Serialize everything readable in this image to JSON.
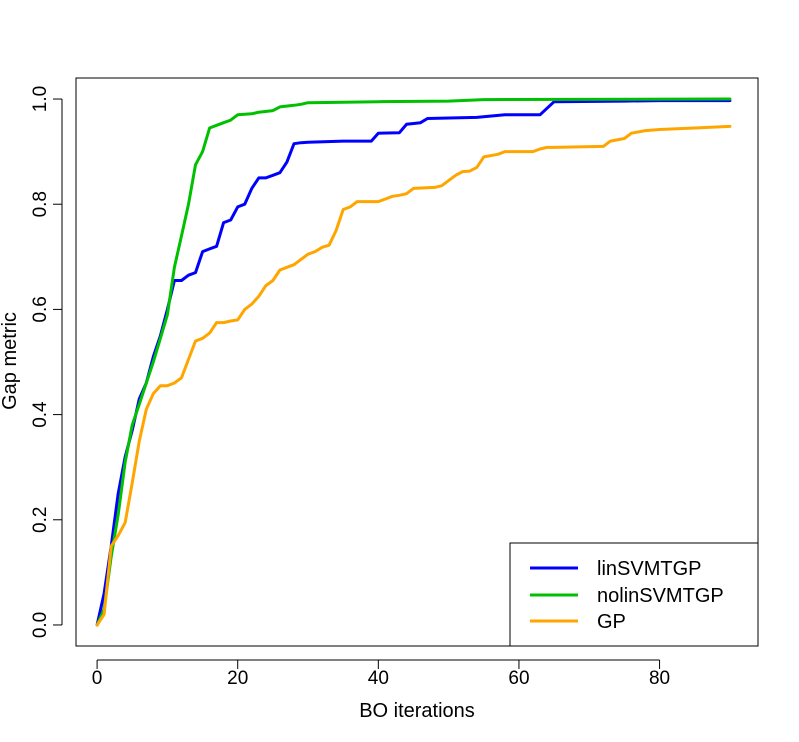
{
  "chart_data": {
    "type": "line",
    "title": "",
    "xlabel": "BO iterations",
    "ylabel": "Gap metric",
    "xlim": [
      -3,
      94
    ],
    "ylim": [
      -0.04,
      1.04
    ],
    "x_ticks": [
      0,
      20,
      40,
      60,
      80
    ],
    "x_tick_labels": [
      "0",
      "20",
      "40",
      "60",
      "80"
    ],
    "y_ticks": [
      0.0,
      0.2,
      0.4,
      0.6,
      0.8,
      1.0
    ],
    "y_tick_labels": [
      "0.0",
      "0.2",
      "0.4",
      "0.6",
      "0.8",
      "1.0"
    ],
    "grid": false,
    "legend_position": "bottom-right",
    "series": [
      {
        "name": "linSVMTGP",
        "color": "#0000ff",
        "points": [
          [
            0,
            0.0
          ],
          [
            1,
            0.06
          ],
          [
            2,
            0.15
          ],
          [
            3,
            0.25
          ],
          [
            4,
            0.32
          ],
          [
            5,
            0.37
          ],
          [
            6,
            0.43
          ],
          [
            7,
            0.46
          ],
          [
            8,
            0.51
          ],
          [
            9,
            0.55
          ],
          [
            10,
            0.6
          ],
          [
            11,
            0.655
          ],
          [
            12,
            0.655
          ],
          [
            13,
            0.665
          ],
          [
            14,
            0.67
          ],
          [
            15,
            0.71
          ],
          [
            16,
            0.715
          ],
          [
            17,
            0.72
          ],
          [
            18,
            0.765
          ],
          [
            19,
            0.77
          ],
          [
            20,
            0.795
          ],
          [
            21,
            0.8
          ],
          [
            22,
            0.83
          ],
          [
            23,
            0.85
          ],
          [
            24,
            0.85
          ],
          [
            25,
            0.855
          ],
          [
            26,
            0.86
          ],
          [
            27,
            0.88
          ],
          [
            28,
            0.915
          ],
          [
            29,
            0.917
          ],
          [
            30,
            0.918
          ],
          [
            35,
            0.92
          ],
          [
            39,
            0.92
          ],
          [
            40,
            0.935
          ],
          [
            43,
            0.936
          ],
          [
            44,
            0.952
          ],
          [
            46,
            0.955
          ],
          [
            47,
            0.963
          ],
          [
            54,
            0.965
          ],
          [
            58,
            0.97
          ],
          [
            63,
            0.97
          ],
          [
            65,
            0.995
          ],
          [
            75,
            0.996
          ],
          [
            80,
            0.997
          ],
          [
            90,
            0.997
          ]
        ]
      },
      {
        "name": "nolinSVMTGP",
        "color": "#00c000",
        "points": [
          [
            0,
            0.0
          ],
          [
            1,
            0.03
          ],
          [
            2,
            0.13
          ],
          [
            3,
            0.21
          ],
          [
            4,
            0.31
          ],
          [
            5,
            0.38
          ],
          [
            6,
            0.42
          ],
          [
            7,
            0.46
          ],
          [
            8,
            0.5
          ],
          [
            9,
            0.545
          ],
          [
            10,
            0.59
          ],
          [
            11,
            0.68
          ],
          [
            12,
            0.74
          ],
          [
            13,
            0.8
          ],
          [
            14,
            0.875
          ],
          [
            15,
            0.9
          ],
          [
            16,
            0.945
          ],
          [
            17,
            0.95
          ],
          [
            18,
            0.955
          ],
          [
            19,
            0.96
          ],
          [
            20,
            0.97
          ],
          [
            22,
            0.972
          ],
          [
            23,
            0.975
          ],
          [
            25,
            0.978
          ],
          [
            26,
            0.985
          ],
          [
            28,
            0.988
          ],
          [
            29,
            0.99
          ],
          [
            30,
            0.993
          ],
          [
            40,
            0.995
          ],
          [
            50,
            0.996
          ],
          [
            55,
            0.999
          ],
          [
            90,
            1.0
          ]
        ]
      },
      {
        "name": "GP",
        "color": "#ffa500",
        "points": [
          [
            0,
            0.0
          ],
          [
            1,
            0.02
          ],
          [
            2,
            0.15
          ],
          [
            3,
            0.17
          ],
          [
            4,
            0.195
          ],
          [
            5,
            0.27
          ],
          [
            6,
            0.35
          ],
          [
            7,
            0.41
          ],
          [
            8,
            0.44
          ],
          [
            9,
            0.455
          ],
          [
            10,
            0.455
          ],
          [
            11,
            0.46
          ],
          [
            12,
            0.47
          ],
          [
            13,
            0.505
          ],
          [
            14,
            0.54
          ],
          [
            15,
            0.545
          ],
          [
            16,
            0.555
          ],
          [
            17,
            0.575
          ],
          [
            18,
            0.575
          ],
          [
            19,
            0.578
          ],
          [
            20,
            0.58
          ],
          [
            21,
            0.6
          ],
          [
            22,
            0.61
          ],
          [
            23,
            0.625
          ],
          [
            24,
            0.645
          ],
          [
            25,
            0.655
          ],
          [
            26,
            0.675
          ],
          [
            27,
            0.68
          ],
          [
            28,
            0.685
          ],
          [
            29,
            0.695
          ],
          [
            30,
            0.705
          ],
          [
            31,
            0.71
          ],
          [
            32,
            0.718
          ],
          [
            33,
            0.722
          ],
          [
            34,
            0.75
          ],
          [
            35,
            0.79
          ],
          [
            36,
            0.795
          ],
          [
            37,
            0.805
          ],
          [
            40,
            0.805
          ],
          [
            41,
            0.81
          ],
          [
            42,
            0.815
          ],
          [
            43,
            0.817
          ],
          [
            44,
            0.82
          ],
          [
            45,
            0.83
          ],
          [
            48,
            0.832
          ],
          [
            49,
            0.835
          ],
          [
            50,
            0.845
          ],
          [
            51,
            0.855
          ],
          [
            52,
            0.862
          ],
          [
            53,
            0.863
          ],
          [
            54,
            0.87
          ],
          [
            55,
            0.89
          ],
          [
            57,
            0.895
          ],
          [
            58,
            0.9
          ],
          [
            62,
            0.9
          ],
          [
            63,
            0.905
          ],
          [
            64,
            0.908
          ],
          [
            65,
            0.908
          ],
          [
            72,
            0.91
          ],
          [
            73,
            0.92
          ],
          [
            75,
            0.925
          ],
          [
            76,
            0.935
          ],
          [
            78,
            0.94
          ],
          [
            80,
            0.942
          ],
          [
            85,
            0.945
          ],
          [
            90,
            0.948
          ]
        ]
      }
    ]
  }
}
